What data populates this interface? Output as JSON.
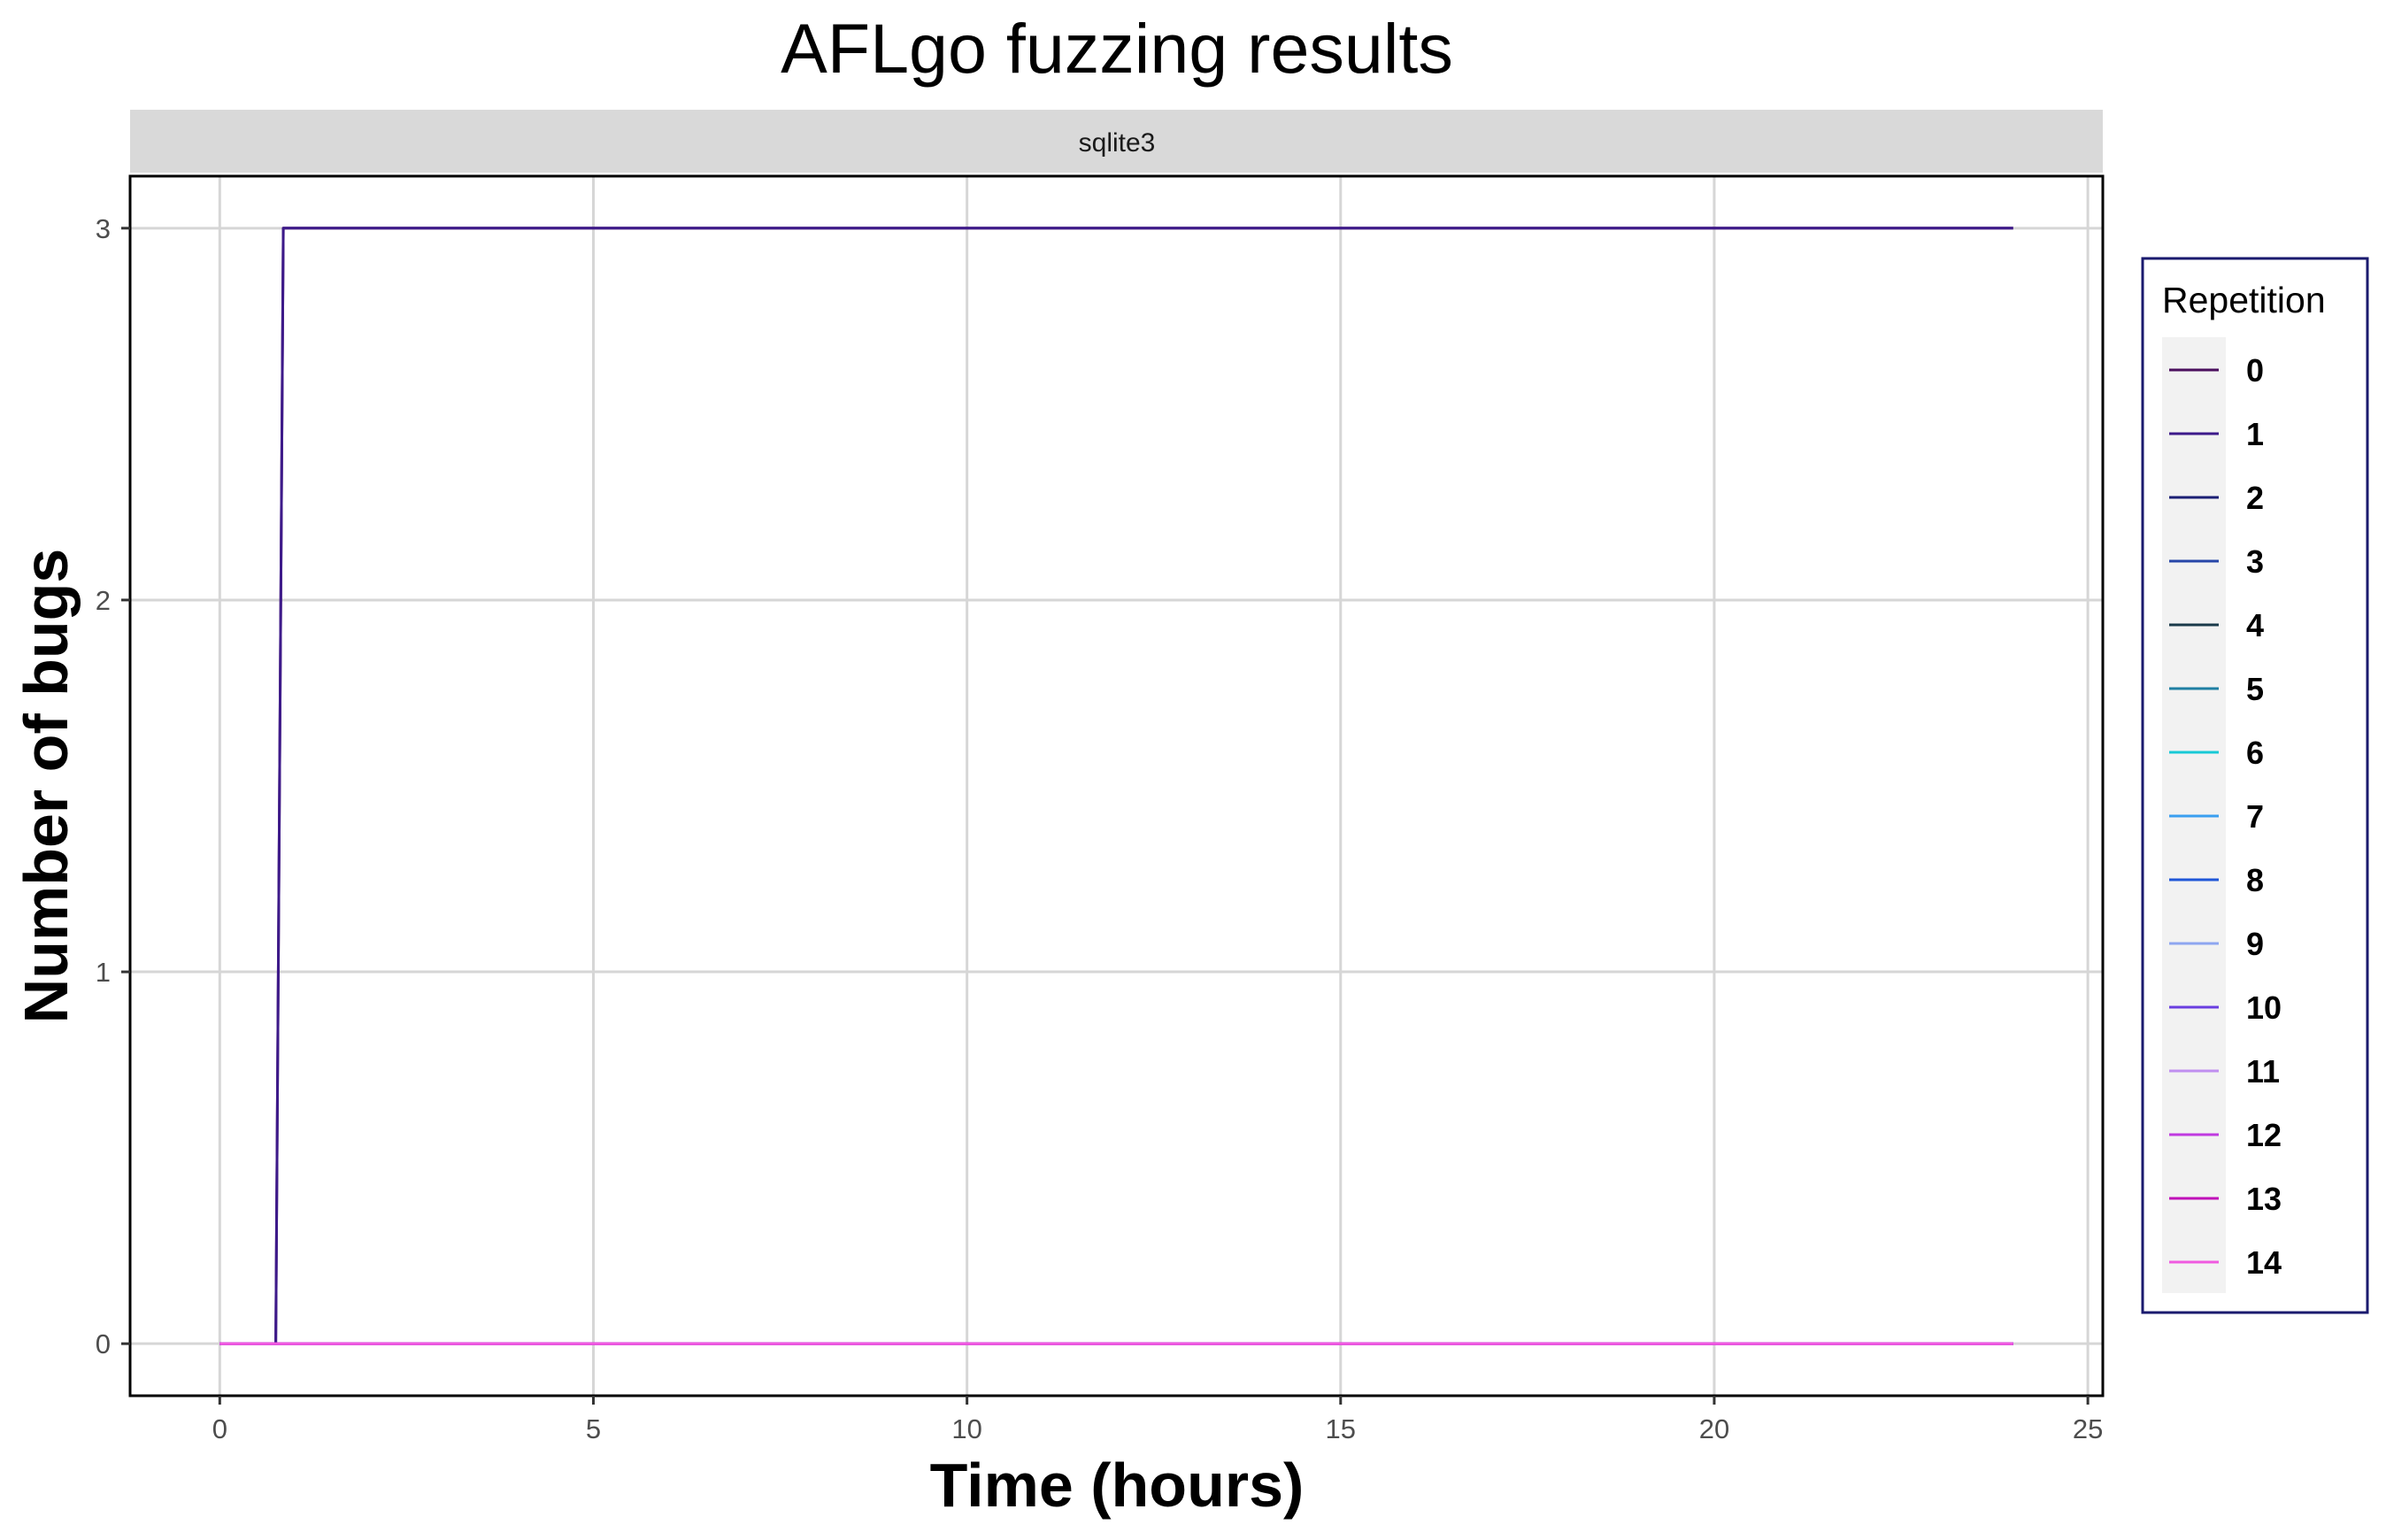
{
  "chart_data": {
    "type": "line",
    "title": "AFLgo fuzzing results",
    "facet_label": "sqlite3",
    "xlabel": "Time (hours)",
    "ylabel": "Number of bugs",
    "xlim": [
      -1.2,
      25.2
    ],
    "ylim": [
      -0.14,
      3.14
    ],
    "x_ticks": [
      0,
      5,
      10,
      15,
      20,
      25
    ],
    "y_ticks": [
      0,
      1,
      2,
      3
    ],
    "grid": true,
    "step": true,
    "legend": {
      "title": "Repetition",
      "placement": "right",
      "entries": [
        "0",
        "1",
        "2",
        "3",
        "4",
        "5",
        "6",
        "7",
        "8",
        "9",
        "10",
        "11",
        "12",
        "13",
        "14"
      ]
    },
    "series": [
      {
        "name": "0",
        "color": "#4b0f5e",
        "x": [
          0,
          0.75,
          0.85,
          24
        ],
        "y": [
          0,
          0,
          3,
          3
        ]
      },
      {
        "name": "1",
        "color": "#3d1a8a",
        "x": [
          0,
          0.75,
          0.85,
          24
        ],
        "y": [
          0,
          0,
          3,
          3
        ]
      },
      {
        "name": "2",
        "color": "#1b1f74",
        "x": [
          0,
          24
        ],
        "y": [
          0,
          0
        ]
      },
      {
        "name": "3",
        "color": "#2746a8",
        "x": [
          0,
          24
        ],
        "y": [
          0,
          0
        ]
      },
      {
        "name": "4",
        "color": "#1a3a4a",
        "x": [
          0,
          24
        ],
        "y": [
          0,
          0
        ]
      },
      {
        "name": "5",
        "color": "#1f7fa3",
        "x": [
          0,
          24
        ],
        "y": [
          0,
          0
        ]
      },
      {
        "name": "6",
        "color": "#18c9d6",
        "x": [
          0,
          24
        ],
        "y": [
          0,
          0
        ]
      },
      {
        "name": "7",
        "color": "#3a9ff0",
        "x": [
          0,
          24
        ],
        "y": [
          0,
          0
        ]
      },
      {
        "name": "8",
        "color": "#1f56d8",
        "x": [
          0,
          24
        ],
        "y": [
          0,
          0
        ]
      },
      {
        "name": "9",
        "color": "#8ea6f0",
        "x": [
          0,
          24
        ],
        "y": [
          0,
          0
        ]
      },
      {
        "name": "10",
        "color": "#6a3fe0",
        "x": [
          0,
          24
        ],
        "y": [
          0,
          0
        ]
      },
      {
        "name": "11",
        "color": "#c08ff0",
        "x": [
          0,
          24
        ],
        "y": [
          0,
          0
        ]
      },
      {
        "name": "12",
        "color": "#c03ae0",
        "x": [
          0,
          24
        ],
        "y": [
          0,
          0
        ]
      },
      {
        "name": "13",
        "color": "#c010b8",
        "x": [
          0,
          24
        ],
        "y": [
          0,
          0
        ]
      },
      {
        "name": "14",
        "color": "#f05ae0",
        "x": [
          0,
          24
        ],
        "y": [
          0,
          0
        ]
      }
    ]
  }
}
